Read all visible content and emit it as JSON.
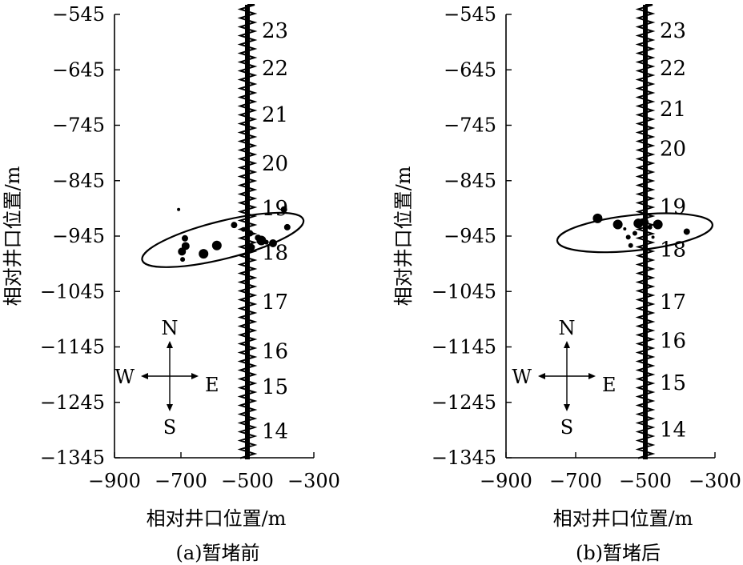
{
  "chart_data": [
    {
      "type": "scatter",
      "title": "",
      "caption": "(a)暂堵前",
      "xlabel": "相对井口位置/m",
      "ylabel": "相对井口位置/m",
      "xlim": [
        -900,
        -300
      ],
      "ylim": [
        -1345,
        -545
      ],
      "xticks": [
        "-900",
        "-700",
        "-500",
        "-300"
      ],
      "yticks": [
        "-545",
        "-645",
        "-745",
        "-845",
        "-945",
        "-1045",
        "-1145",
        "-1245",
        "-1345"
      ],
      "compass": {
        "n": "N",
        "s": "S",
        "w": "W",
        "e": "E"
      },
      "stages": [
        {
          "label": "23",
          "y": -575
        },
        {
          "label": "22",
          "y": -643
        },
        {
          "label": "21",
          "y": -727
        },
        {
          "label": "20",
          "y": -815
        },
        {
          "label": "19",
          "y": -896
        },
        {
          "label": "18",
          "y": -976
        },
        {
          "label": "17",
          "y": -1065
        },
        {
          "label": "16",
          "y": -1154
        },
        {
          "label": "15",
          "y": -1218
        },
        {
          "label": "14",
          "y": -1298
        }
      ],
      "ellipse": {
        "cx": -574,
        "cy": -952,
        "rx": 250,
        "ry": 34,
        "angle": -14
      },
      "points": [
        {
          "x": -707,
          "y": -897,
          "s": 2
        },
        {
          "x": -695,
          "y": -987,
          "s": 3
        },
        {
          "x": -697,
          "y": -973,
          "s": 5
        },
        {
          "x": -686,
          "y": -963,
          "s": 5
        },
        {
          "x": -688,
          "y": -949,
          "s": 4
        },
        {
          "x": -632,
          "y": -977,
          "s": 6
        },
        {
          "x": -592,
          "y": -962,
          "s": 6
        },
        {
          "x": -540,
          "y": -925,
          "s": 4
        },
        {
          "x": -512,
          "y": -933,
          "s": 3
        },
        {
          "x": -498,
          "y": -922,
          "s": 2
        },
        {
          "x": -492,
          "y": -940,
          "s": 4
        },
        {
          "x": -487,
          "y": -965,
          "s": 4
        },
        {
          "x": -468,
          "y": -948,
          "s": 4
        },
        {
          "x": -458,
          "y": -953,
          "s": 6
        },
        {
          "x": -443,
          "y": -956,
          "s": 3
        },
        {
          "x": -423,
          "y": -958,
          "s": 5
        },
        {
          "x": -390,
          "y": -897,
          "s": 4
        },
        {
          "x": -380,
          "y": -929,
          "s": 4
        }
      ]
    },
    {
      "type": "scatter",
      "title": "",
      "caption": "(b)暂堵后",
      "xlabel": "相对井口位置/m",
      "ylabel": "相对井口位置/m",
      "xlim": [
        -900,
        -300
      ],
      "ylim": [
        -1345,
        -545
      ],
      "xticks": [
        "-900",
        "-700",
        "-500",
        "-300"
      ],
      "yticks": [
        "-545",
        "-645",
        "-745",
        "-845",
        "-945",
        "-1045",
        "-1145",
        "-1245",
        "-1345"
      ],
      "compass": {
        "n": "N",
        "s": "S",
        "w": "W",
        "e": "E"
      },
      "stages": [
        {
          "label": "23",
          "y": -575
        },
        {
          "label": "22",
          "y": -643
        },
        {
          "label": "21",
          "y": -717
        },
        {
          "label": "20",
          "y": -788
        },
        {
          "label": "19",
          "y": -893
        },
        {
          "label": "18",
          "y": -970
        },
        {
          "label": "17",
          "y": -1065
        },
        {
          "label": "16",
          "y": -1135
        },
        {
          "label": "15",
          "y": -1211
        },
        {
          "label": "14",
          "y": -1295
        }
      ],
      "ellipse": {
        "cx": -530,
        "cy": -939,
        "rx": 224,
        "ry": 32,
        "angle": -6
      },
      "points": [
        {
          "x": -637,
          "y": -913,
          "s": 6
        },
        {
          "x": -579,
          "y": -924,
          "s": 6
        },
        {
          "x": -559,
          "y": -932,
          "s": 2
        },
        {
          "x": -549,
          "y": -947,
          "s": 3
        },
        {
          "x": -542,
          "y": -962,
          "s": 3
        },
        {
          "x": -530,
          "y": -940,
          "s": 3
        },
        {
          "x": -520,
          "y": -922,
          "s": 6
        },
        {
          "x": -502,
          "y": -920,
          "s": 5
        },
        {
          "x": -487,
          "y": -929,
          "s": 3
        },
        {
          "x": -478,
          "y": -947,
          "s": 2
        },
        {
          "x": -464,
          "y": -924,
          "s": 6
        },
        {
          "x": -381,
          "y": -937,
          "s": 4
        }
      ]
    }
  ]
}
